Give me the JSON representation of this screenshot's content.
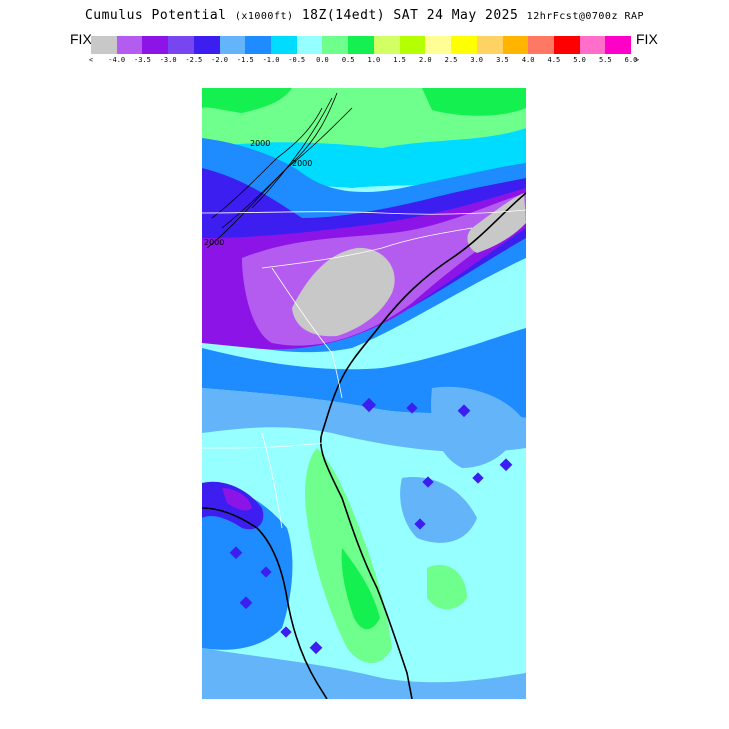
{
  "title": {
    "main": "Cumulus Potential",
    "units": "(x1000ft)",
    "valid": "18Z(14edt) SAT 24 May 2025",
    "run": "12hrFcst@0700z RAP"
  },
  "legend": {
    "fix_left": "FIX",
    "fix_right": "FIX",
    "arrow_left": "<",
    "arrow_right": ">",
    "colors": [
      "#c8c8c8",
      "#b45cf0",
      "#8c14e6",
      "#7846f0",
      "#3c1ef0",
      "#64b4fa",
      "#1e8cff",
      "#00dcff",
      "#96ffff",
      "#6eff8c",
      "#14f050",
      "#d2ff64",
      "#b4ff00",
      "#ffff96",
      "#ffff00",
      "#ffd264",
      "#ffb400",
      "#ff7864",
      "#ff0000",
      "#ff6ec8",
      "#ff00c8"
    ],
    "ticks": [
      "-4.0",
      "-3.5",
      "-3.0",
      "-2.5",
      "-2.0",
      "-1.5",
      "-1.0",
      "-0.5",
      "0.0",
      "0.5",
      "1.0",
      "1.5",
      "2.0",
      "2.5",
      "3.0",
      "3.5",
      "4.0",
      "4.5",
      "5.0",
      "5.5",
      "6.0"
    ]
  },
  "map": {
    "contour_labels": [
      "2000",
      "2000",
      "2000"
    ]
  }
}
